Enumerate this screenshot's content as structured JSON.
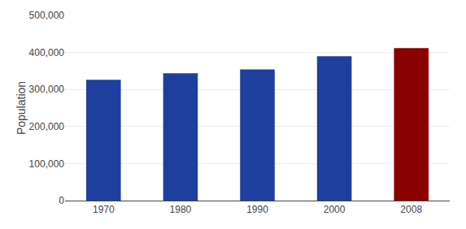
{
  "chart_data": {
    "type": "bar",
    "categories": [
      "1970",
      "1980",
      "1990",
      "2000",
      "2008"
    ],
    "values": [
      326000,
      344000,
      354000,
      390000,
      412000
    ],
    "colors": [
      "#1F3F9F",
      "#1F3F9F",
      "#1F3F9F",
      "#1F3F9F",
      "#8B0000"
    ],
    "ylabel": "Population",
    "ylim": [
      0,
      500000
    ],
    "yticks": [
      0,
      {
        "value": 100000,
        "label": "100,000"
      },
      {
        "value": 200000,
        "label": "200,000"
      },
      {
        "value": 300000,
        "label": "300,000"
      },
      {
        "value": 400000,
        "label": "400,000"
      },
      {
        "value": 500000,
        "label": "500,000"
      }
    ],
    "grid": true
  }
}
